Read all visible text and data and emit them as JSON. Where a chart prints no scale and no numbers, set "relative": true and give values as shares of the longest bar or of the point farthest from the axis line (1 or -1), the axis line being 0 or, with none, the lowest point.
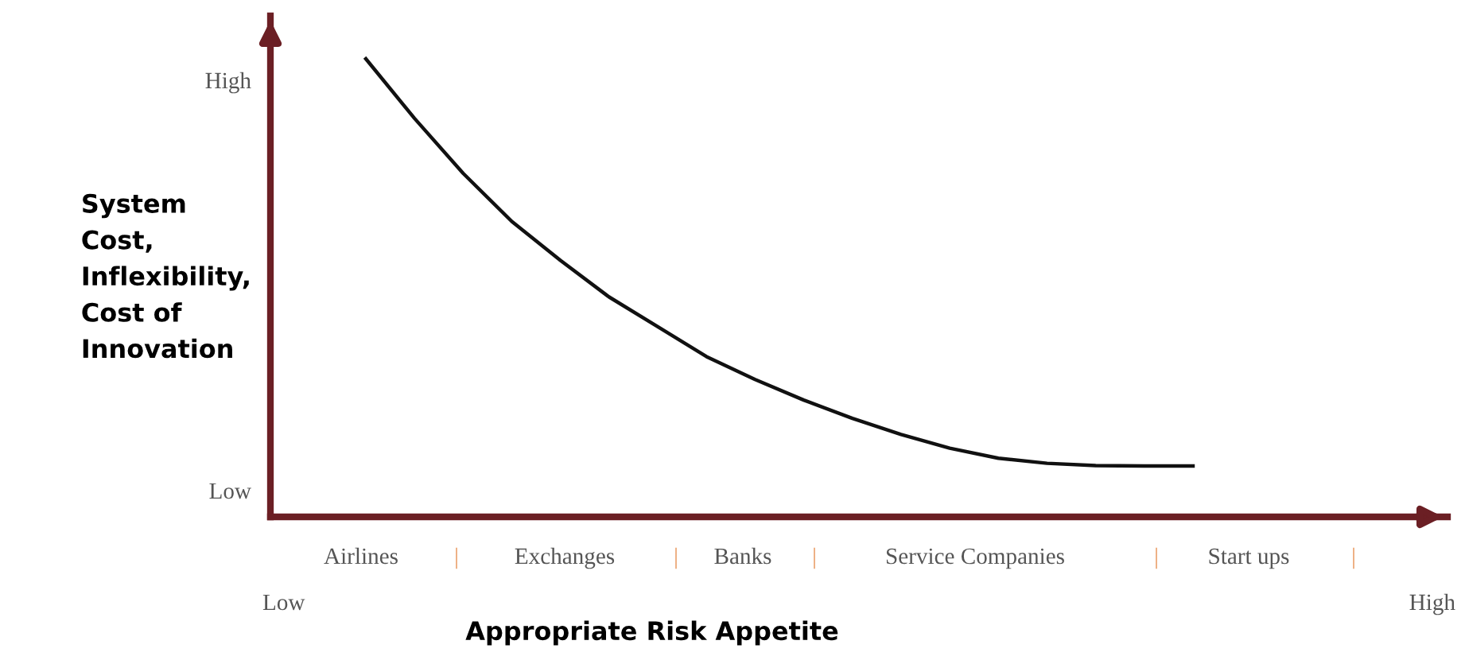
{
  "chart_data": {
    "type": "line",
    "relative": true,
    "xlabel": "Appropriate Risk Appetite",
    "ylabel": "System\nCost,\nInflexibility,\nCost of\nInnovation",
    "categories": [
      null,
      null,
      null,
      null,
      null,
      null,
      null,
      null,
      null,
      null,
      null,
      null,
      null,
      null,
      null,
      null,
      null,
      null
    ],
    "series": [
      {
        "color": "#111111",
        "values": [
          1.0,
          0.87,
          0.75,
          0.645,
          0.56,
          0.48,
          0.415,
          0.35,
          0.3,
          0.255,
          0.215,
          0.18,
          0.15,
          0.128,
          0.117,
          0.112,
          0.111,
          0.111
        ]
      }
    ],
    "annotations": [
      "High",
      "Low",
      "Airlines",
      "|",
      "Exchanges",
      "|",
      "Banks",
      "|",
      "Service Companies",
      "|",
      "Start ups",
      "|",
      "Low",
      "High"
    ],
    "grid": false,
    "legend": false,
    "marker": "none",
    "line_style": "solid"
  }
}
